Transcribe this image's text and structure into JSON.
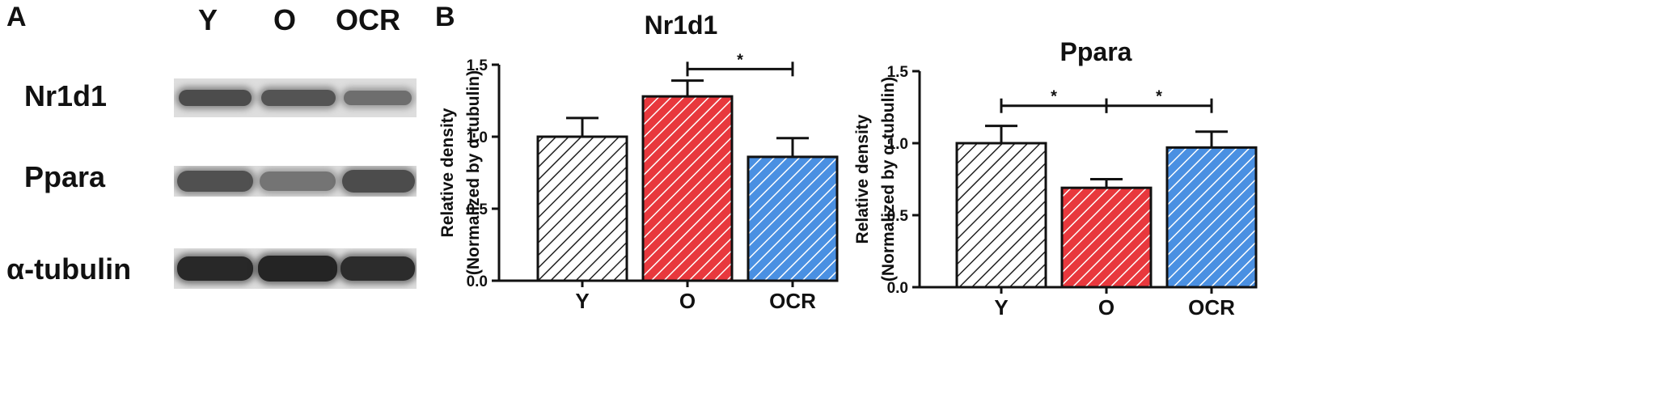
{
  "panel_a": {
    "letter": "A",
    "lanes": [
      "Y",
      "O",
      "OCR"
    ],
    "rows": [
      {
        "label": "Nr1d1",
        "band_intensity": [
          0.72,
          0.68,
          0.55
        ]
      },
      {
        "label": "Ppara",
        "band_intensity": [
          0.7,
          0.52,
          0.72
        ]
      },
      {
        "label": "α-tubulin",
        "band_intensity": [
          0.9,
          0.92,
          0.88
        ]
      }
    ]
  },
  "panel_b": {
    "letter": "B"
  },
  "colors": {
    "Y": "#ffffff",
    "O": "#e8383d",
    "OCR": "#4a90e2",
    "hatch_dark": "#222222",
    "hatch_light": "#ffffff"
  },
  "chart_data": [
    {
      "type": "bar",
      "title": "Nr1d1",
      "ylabel_line1": "Relative density",
      "ylabel_line2": "(Normalized by α-tubulin)",
      "categories": [
        "Y",
        "O",
        "OCR"
      ],
      "values": [
        1.0,
        1.28,
        0.86
      ],
      "errors": [
        0.13,
        0.11,
        0.13
      ],
      "ylim": [
        0,
        1.5
      ],
      "yticks": [
        "0.0",
        "0.5",
        "1.0",
        "1.5"
      ],
      "significance": [
        {
          "from": 1,
          "to": 2,
          "label": "*",
          "y": 1.47
        }
      ]
    },
    {
      "type": "bar",
      "title": "Ppara",
      "ylabel_line1": "Relative density",
      "ylabel_line2": "(Normalized by α-tubulin)",
      "categories": [
        "Y",
        "O",
        "OCR"
      ],
      "values": [
        1.0,
        0.69,
        0.97
      ],
      "errors": [
        0.12,
        0.06,
        0.11
      ],
      "ylim": [
        0,
        1.5
      ],
      "yticks": [
        "0.0",
        "0.5",
        "1.0",
        "1.5"
      ],
      "significance": [
        {
          "from": 0,
          "to": 1,
          "label": "*",
          "y": 1.26
        },
        {
          "from": 1,
          "to": 2,
          "label": "*",
          "y": 1.26
        }
      ]
    }
  ]
}
